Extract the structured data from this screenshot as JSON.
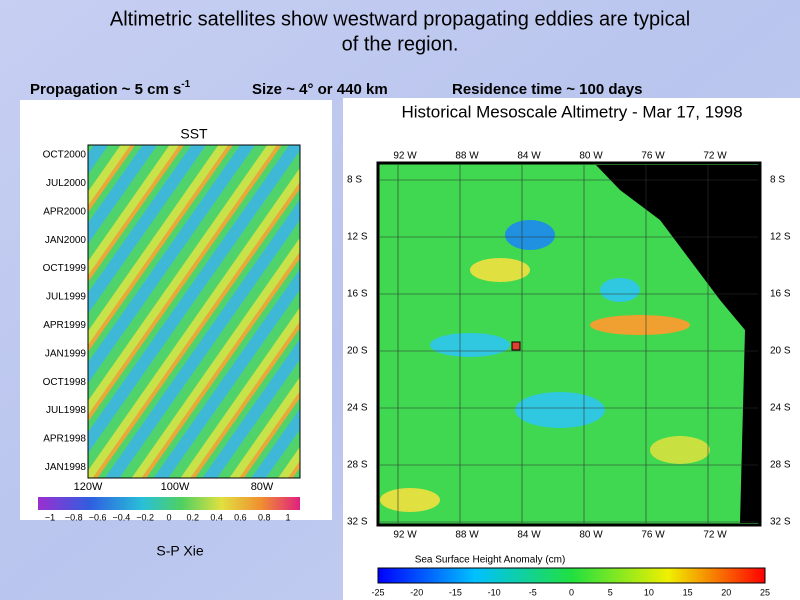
{
  "header": {
    "title_lines": [
      "Altimetric satellites show westward propagating eddies are typical",
      "of the region."
    ]
  },
  "stats": {
    "propagation": "Propagation ~ 5 cm s",
    "propagation_sup": "-1",
    "size": "Size  ~ 4° or 440 km",
    "residence": "Residence time  ~ 100 days"
  },
  "left_panel": {
    "title": "SST",
    "y_labels": [
      "OCT2000",
      "JUL2000",
      "APR2000",
      "JAN2000",
      "OCT1999",
      "JUL1999",
      "APR1999",
      "JAN1999",
      "OCT1998",
      "JUL1998",
      "APR1998",
      "JAN1998"
    ],
    "x_labels": [
      "120W",
      "100W",
      "80W"
    ],
    "colorbar_labels": [
      "−1",
      "−0.8",
      "−0.6",
      "−0.4",
      "−0.2",
      "0",
      "0.2",
      "0.4",
      "0.6",
      "0.8",
      "1"
    ],
    "credit": "S-P Xie"
  },
  "right_panel": {
    "title": "Historical Mesoscale Altimetry - Mar 17, 1998",
    "lon_labels": [
      "92  W",
      "88  W",
      "84  W",
      "80  W",
      "76  W",
      "72  W"
    ],
    "lat_labels": [
      "8  S",
      "12  S",
      "16  S",
      "20  S",
      "24  S",
      "28  S",
      "32  S"
    ],
    "colorbar_title": "Sea Surface Height Anomaly (cm)",
    "colorbar_labels": [
      "-25",
      "-20",
      "-15",
      "-10",
      "-5",
      "0",
      "5",
      "10",
      "15",
      "20",
      "25"
    ]
  }
}
